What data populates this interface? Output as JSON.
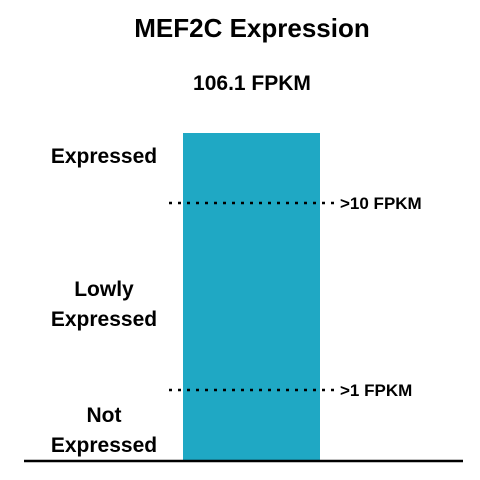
{
  "chart_data": {
    "type": "bar",
    "title": "MEF2C Expression",
    "value_label": "106.1 FPKM",
    "categories": [
      "MEF2C"
    ],
    "values": [
      106.1
    ],
    "unit": "FPKM",
    "bar_color": "#1fa8c4",
    "scale": "log",
    "thresholds": [
      {
        "value": 10,
        "label": ">10 FPKM"
      },
      {
        "value": 1,
        "label": ">1 FPKM"
      }
    ],
    "zones": [
      {
        "lines": [
          "Expressed"
        ]
      },
      {
        "lines": [
          "Lowly",
          "Expressed"
        ]
      },
      {
        "lines": [
          "Not",
          "Expressed"
        ]
      }
    ]
  }
}
